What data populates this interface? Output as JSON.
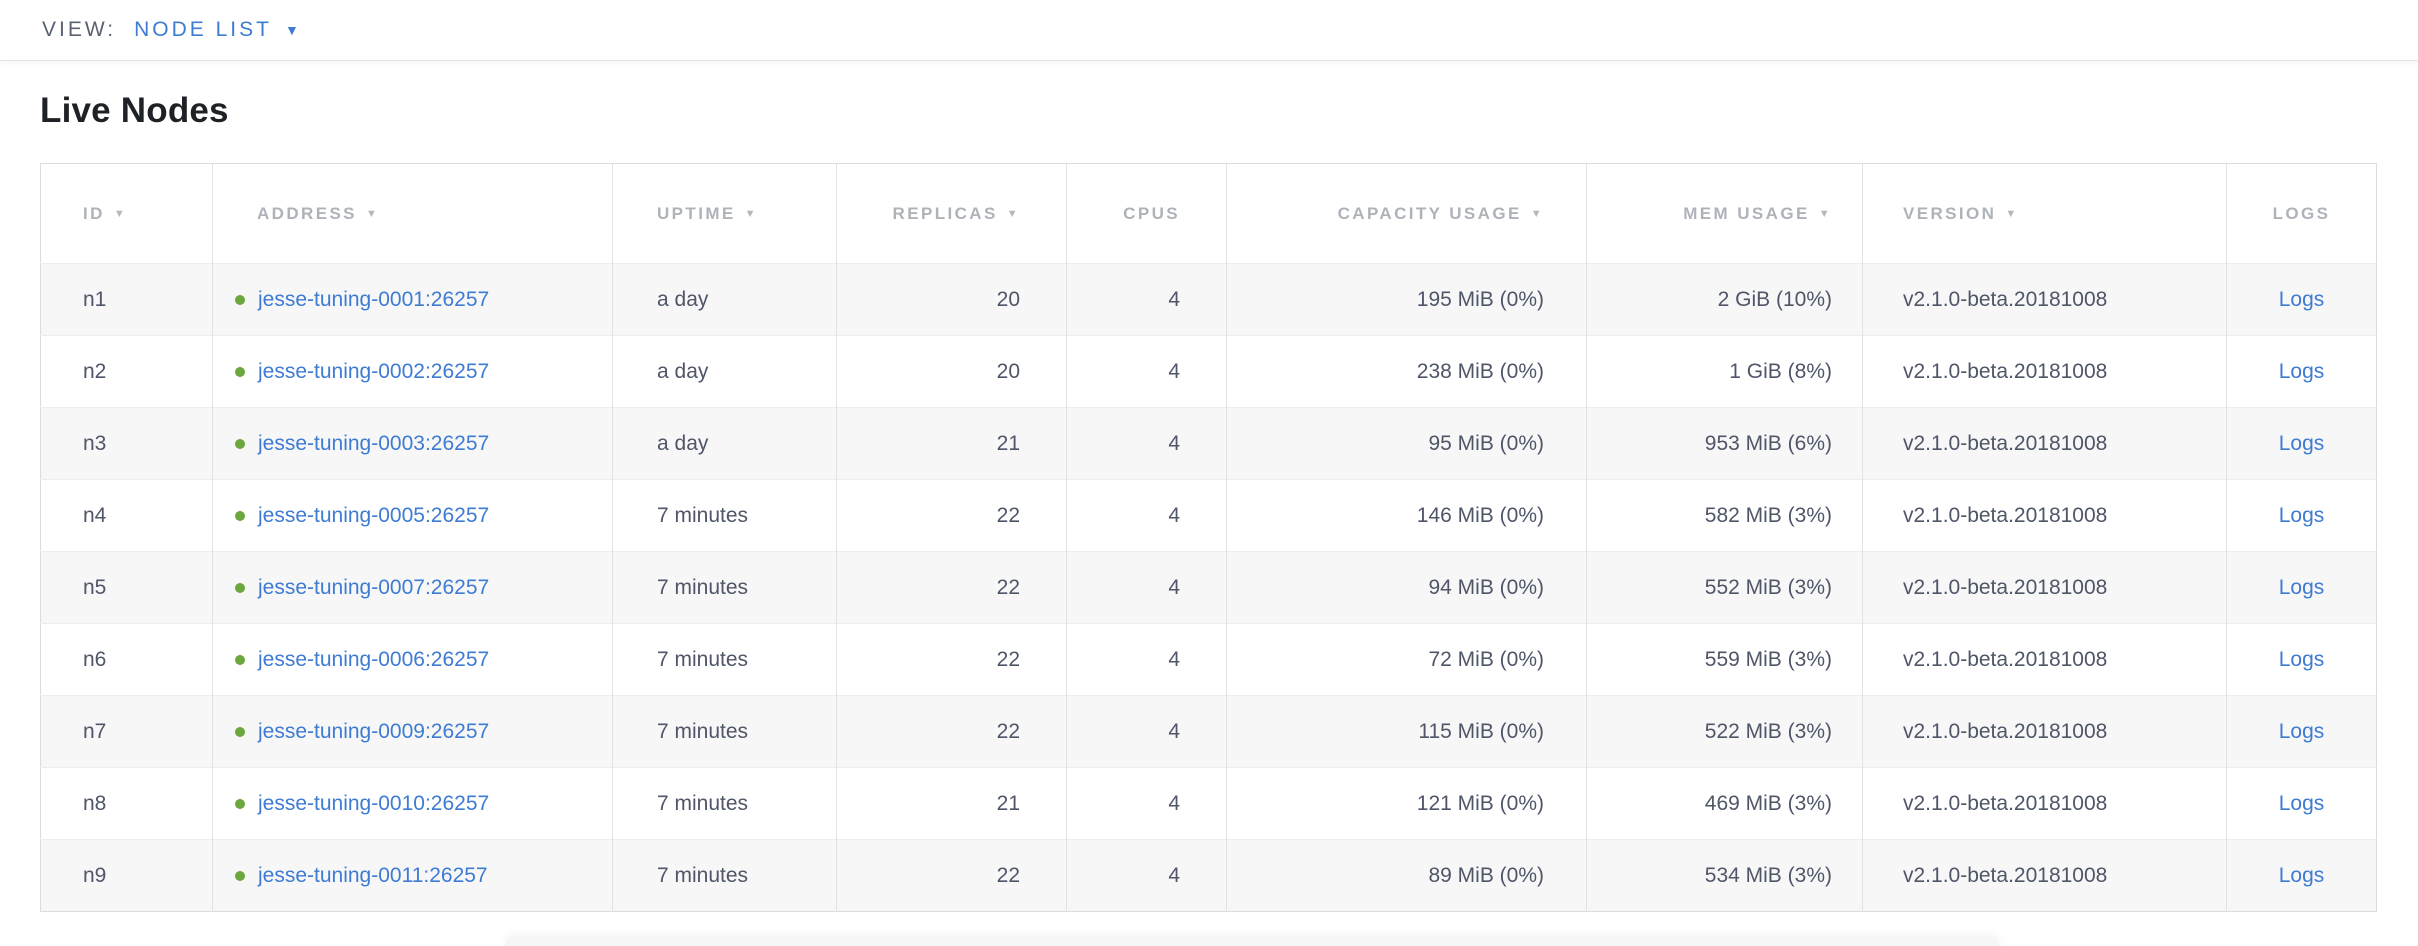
{
  "view_bar": {
    "label": "VIEW:",
    "selected": "NODE LIST"
  },
  "page": {
    "title": "Live Nodes"
  },
  "colors": {
    "accent_blue": "#3e7bd3",
    "healthy_dot_green": "#6aa73c",
    "row_stripe": "#f7f7f7",
    "header_text": "#aeb3ba",
    "cell_text": "#4e5668"
  },
  "table": {
    "columns": [
      {
        "key": "id",
        "label": "ID",
        "sortable": true,
        "class": "c-id"
      },
      {
        "key": "address",
        "label": "ADDRESS",
        "sortable": true,
        "class": "c-address"
      },
      {
        "key": "uptime",
        "label": "UPTIME",
        "sortable": true,
        "class": "c-uptime"
      },
      {
        "key": "replicas",
        "label": "REPLICAS",
        "sortable": true,
        "class": "c-replicas"
      },
      {
        "key": "cpus",
        "label": "CPUS",
        "sortable": false,
        "class": "c-cpus"
      },
      {
        "key": "capacity",
        "label": "CAPACITY USAGE",
        "sortable": true,
        "class": "c-capacity"
      },
      {
        "key": "mem",
        "label": "MEM USAGE",
        "sortable": true,
        "class": "c-mem"
      },
      {
        "key": "version",
        "label": "VERSION",
        "sortable": true,
        "class": "c-version"
      },
      {
        "key": "logs",
        "label": "LOGS",
        "sortable": false,
        "class": "c-logs"
      }
    ],
    "sort_icon": "▼",
    "dropdown_caret_icon": "▼",
    "rows": [
      {
        "id": "n1",
        "address": "jesse-tuning-0001:26257",
        "status": "healthy",
        "uptime": "a day",
        "replicas": "20",
        "cpus": "4",
        "capacity": "195 MiB (0%)",
        "mem": "2 GiB (10%)",
        "version": "v2.1.0-beta.20181008",
        "logs": "Logs"
      },
      {
        "id": "n2",
        "address": "jesse-tuning-0002:26257",
        "status": "healthy",
        "uptime": "a day",
        "replicas": "20",
        "cpus": "4",
        "capacity": "238 MiB (0%)",
        "mem": "1 GiB (8%)",
        "version": "v2.1.0-beta.20181008",
        "logs": "Logs"
      },
      {
        "id": "n3",
        "address": "jesse-tuning-0003:26257",
        "status": "healthy",
        "uptime": "a day",
        "replicas": "21",
        "cpus": "4",
        "capacity": "95 MiB (0%)",
        "mem": "953 MiB (6%)",
        "version": "v2.1.0-beta.20181008",
        "logs": "Logs"
      },
      {
        "id": "n4",
        "address": "jesse-tuning-0005:26257",
        "status": "healthy",
        "uptime": "7 minutes",
        "replicas": "22",
        "cpus": "4",
        "capacity": "146 MiB (0%)",
        "mem": "582 MiB (3%)",
        "version": "v2.1.0-beta.20181008",
        "logs": "Logs"
      },
      {
        "id": "n5",
        "address": "jesse-tuning-0007:26257",
        "status": "healthy",
        "uptime": "7 minutes",
        "replicas": "22",
        "cpus": "4",
        "capacity": "94 MiB (0%)",
        "mem": "552 MiB (3%)",
        "version": "v2.1.0-beta.20181008",
        "logs": "Logs"
      },
      {
        "id": "n6",
        "address": "jesse-tuning-0006:26257",
        "status": "healthy",
        "uptime": "7 minutes",
        "replicas": "22",
        "cpus": "4",
        "capacity": "72 MiB (0%)",
        "mem": "559 MiB (3%)",
        "version": "v2.1.0-beta.20181008",
        "logs": "Logs"
      },
      {
        "id": "n7",
        "address": "jesse-tuning-0009:26257",
        "status": "healthy",
        "uptime": "7 minutes",
        "replicas": "22",
        "cpus": "4",
        "capacity": "115 MiB (0%)",
        "mem": "522 MiB (3%)",
        "version": "v2.1.0-beta.20181008",
        "logs": "Logs"
      },
      {
        "id": "n8",
        "address": "jesse-tuning-0010:26257",
        "status": "healthy",
        "uptime": "7 minutes",
        "replicas": "21",
        "cpus": "4",
        "capacity": "121 MiB (0%)",
        "mem": "469 MiB (3%)",
        "version": "v2.1.0-beta.20181008",
        "logs": "Logs"
      },
      {
        "id": "n9",
        "address": "jesse-tuning-0011:26257",
        "status": "healthy",
        "uptime": "7 minutes",
        "replicas": "22",
        "cpus": "4",
        "capacity": "89 MiB (0%)",
        "mem": "534 MiB (3%)",
        "version": "v2.1.0-beta.20181008",
        "logs": "Logs"
      }
    ]
  }
}
